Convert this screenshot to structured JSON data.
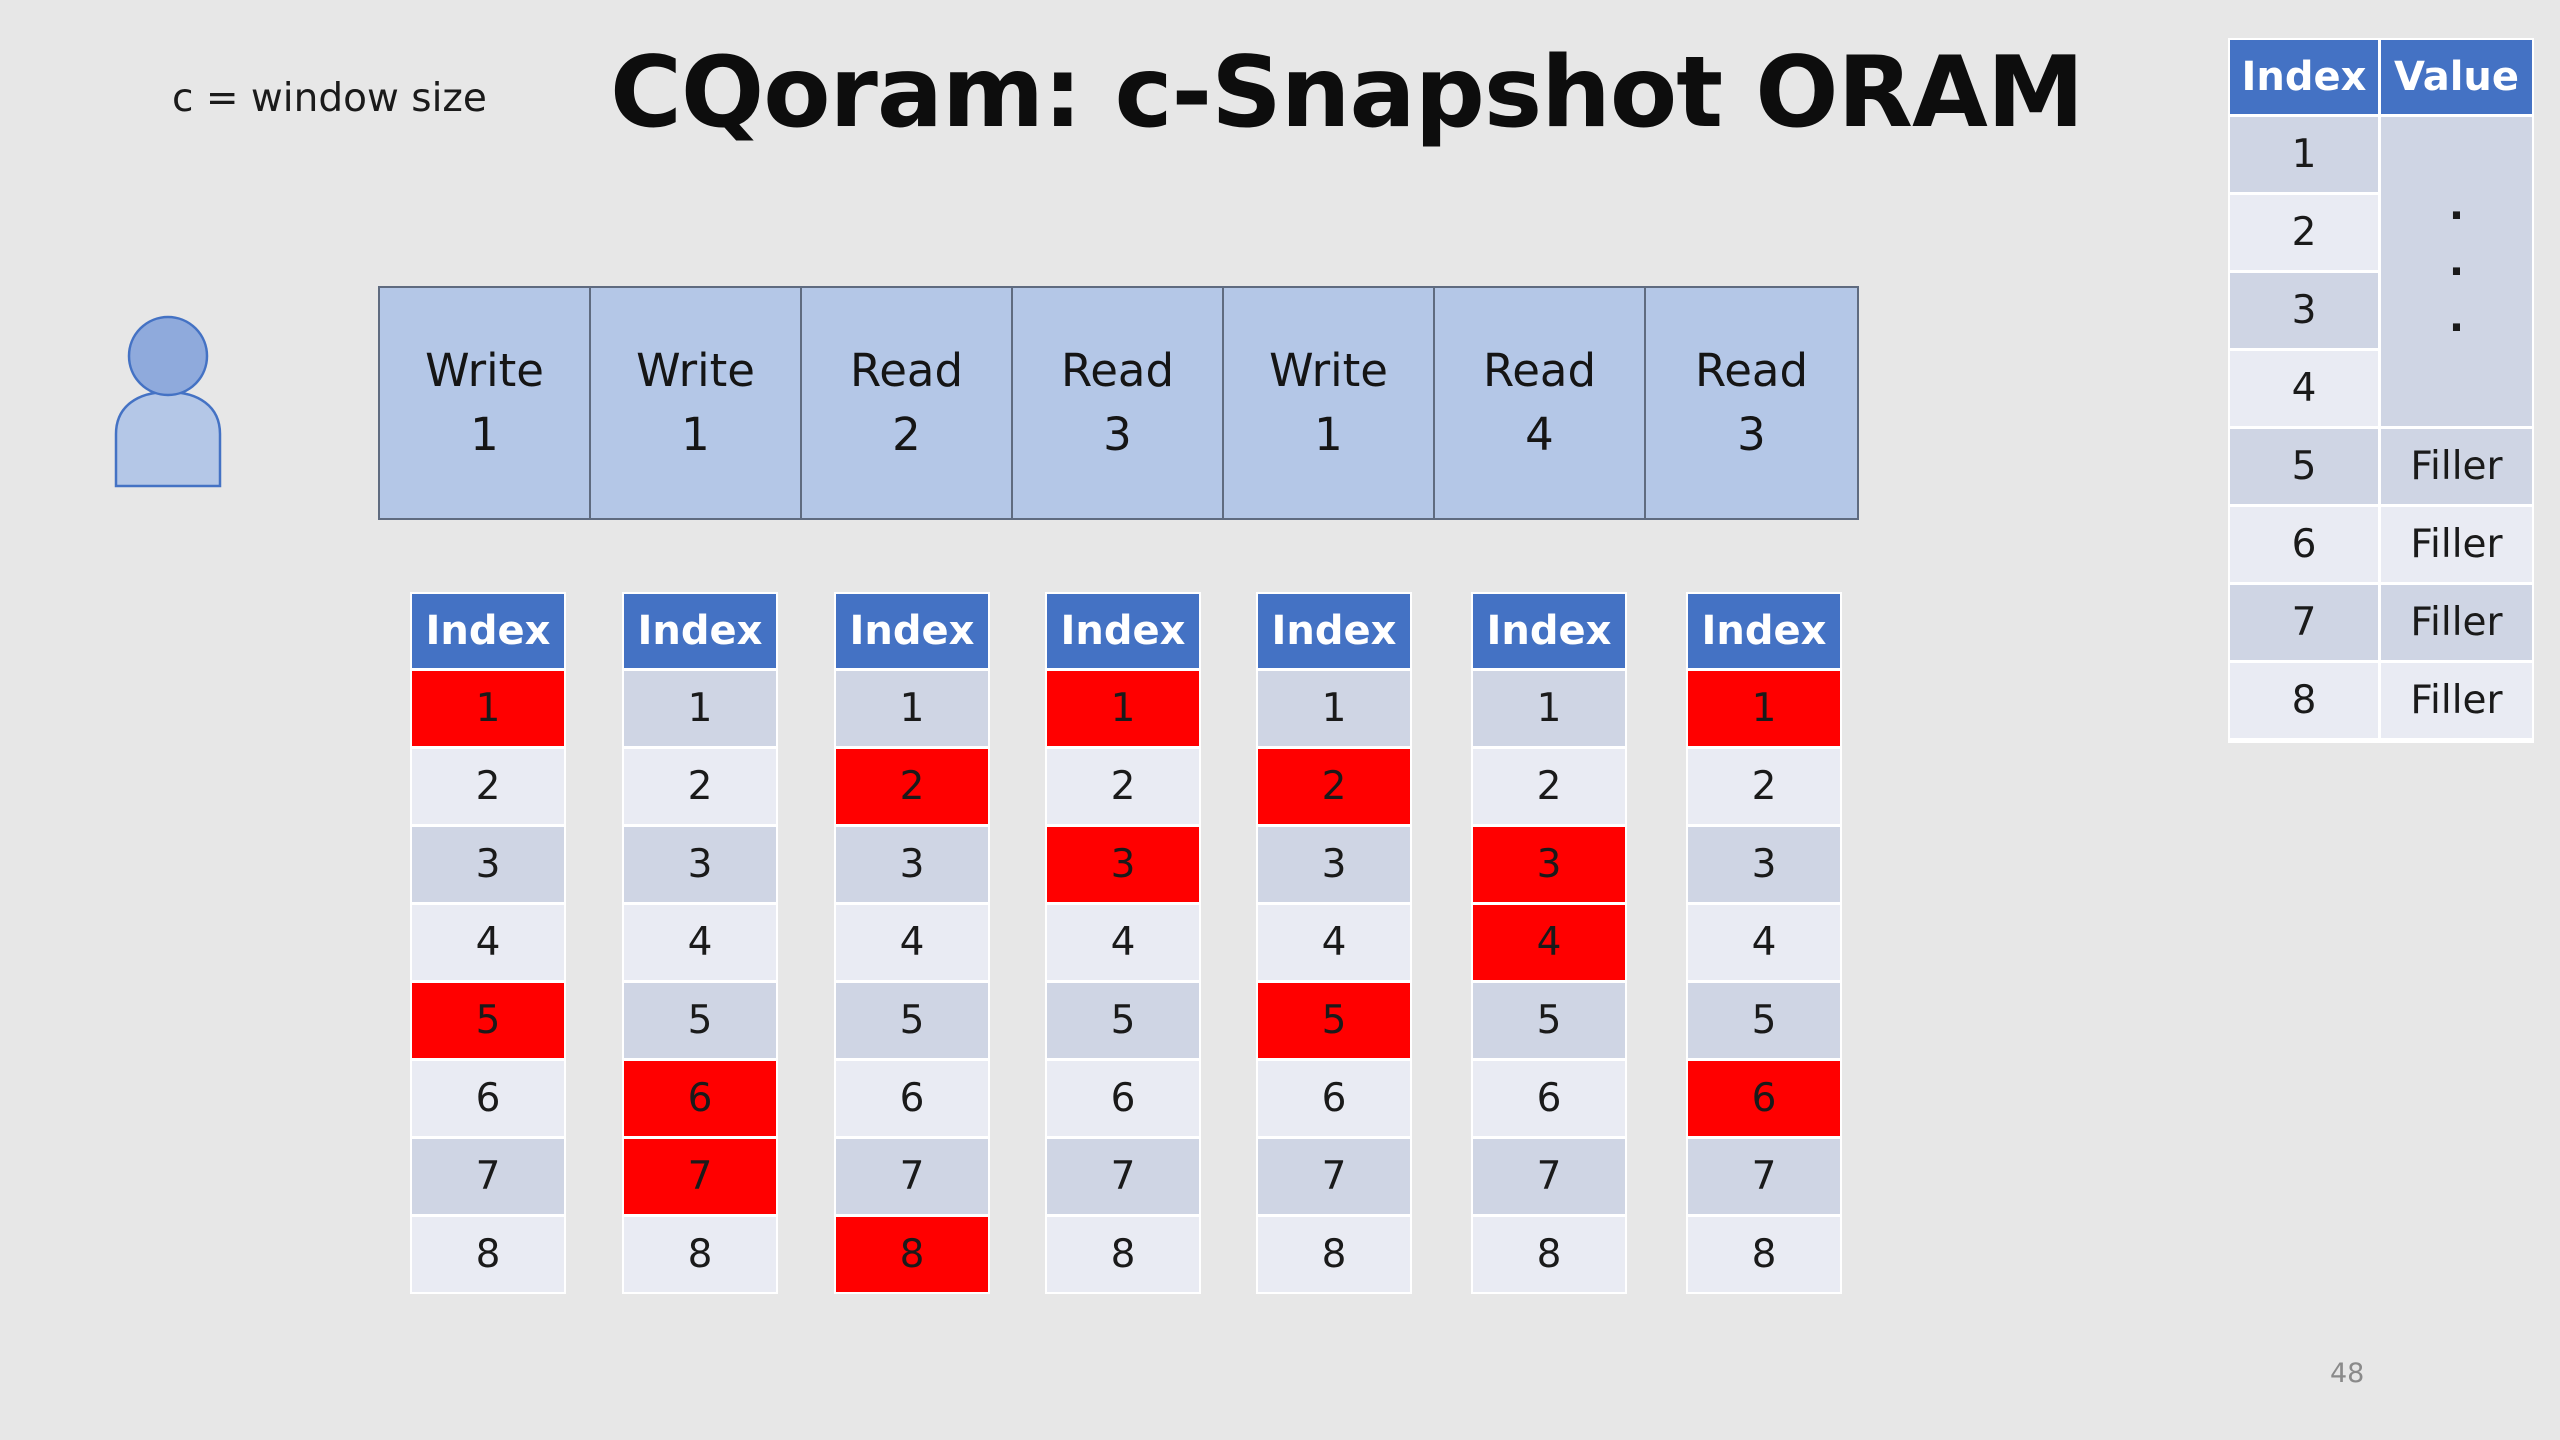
{
  "slide": {
    "title": "CQoram: c-Snapshot ORAM",
    "window_note": "c = window size",
    "page_number": "48",
    "user_icon": "person-icon"
  },
  "operations": [
    {
      "op": "Write",
      "index": "1"
    },
    {
      "op": "Write",
      "index": "1"
    },
    {
      "op": "Read",
      "index": "2"
    },
    {
      "op": "Read",
      "index": "3"
    },
    {
      "op": "Write",
      "index": "1"
    },
    {
      "op": "Read",
      "index": "4"
    },
    {
      "op": "Read",
      "index": "3"
    }
  ],
  "index_tables": [
    {
      "header": "Index",
      "rows": [
        "1",
        "2",
        "3",
        "4",
        "5",
        "6",
        "7",
        "8"
      ],
      "highlighted": [
        "1",
        "5"
      ]
    },
    {
      "header": "Index",
      "rows": [
        "1",
        "2",
        "3",
        "4",
        "5",
        "6",
        "7",
        "8"
      ],
      "highlighted": [
        "6",
        "7"
      ]
    },
    {
      "header": "Index",
      "rows": [
        "1",
        "2",
        "3",
        "4",
        "5",
        "6",
        "7",
        "8"
      ],
      "highlighted": [
        "2",
        "8"
      ]
    },
    {
      "header": "Index",
      "rows": [
        "1",
        "2",
        "3",
        "4",
        "5",
        "6",
        "7",
        "8"
      ],
      "highlighted": [
        "1",
        "3"
      ]
    },
    {
      "header": "Index",
      "rows": [
        "1",
        "2",
        "3",
        "4",
        "5",
        "6",
        "7",
        "8"
      ],
      "highlighted": [
        "2",
        "5"
      ]
    },
    {
      "header": "Index",
      "rows": [
        "1",
        "2",
        "3",
        "4",
        "5",
        "6",
        "7",
        "8"
      ],
      "highlighted": [
        "3",
        "4"
      ]
    },
    {
      "header": "Index",
      "rows": [
        "1",
        "2",
        "3",
        "4",
        "5",
        "6",
        "7",
        "8"
      ],
      "highlighted": [
        "1",
        "6"
      ]
    }
  ],
  "value_table": {
    "headers": [
      "Index",
      "Value"
    ],
    "rows": [
      {
        "index": "1",
        "value": ""
      },
      {
        "index": "2",
        "value": ""
      },
      {
        "index": "3",
        "value": ""
      },
      {
        "index": "4",
        "value": ""
      },
      {
        "index": "5",
        "value": "Filler"
      },
      {
        "index": "6",
        "value": "Filler"
      },
      {
        "index": "7",
        "value": "Filler"
      },
      {
        "index": "8",
        "value": "Filler"
      }
    ],
    "merged_value": [
      "·",
      "·",
      "·"
    ]
  },
  "colors": {
    "background": "#e7e7e7",
    "header_blue": "#4472c4",
    "op_fill": "#b4c7e7",
    "highlight_red": "#ff0000",
    "row_dark": "#cfd5e4",
    "row_light": "#e9ebf3"
  }
}
